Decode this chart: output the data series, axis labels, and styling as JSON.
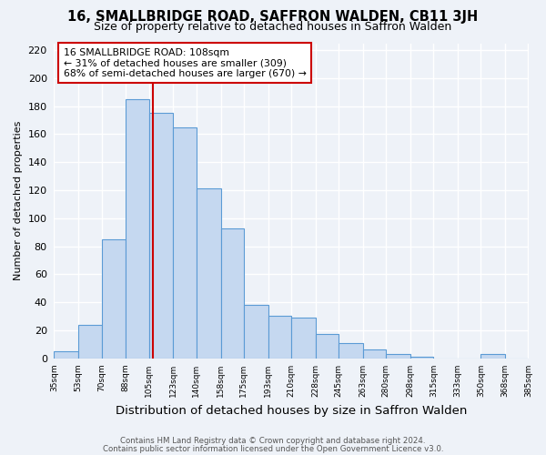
{
  "title": "16, SMALLBRIDGE ROAD, SAFFRON WALDEN, CB11 3JH",
  "subtitle": "Size of property relative to detached houses in Saffron Walden",
  "xlabel": "Distribution of detached houses by size in Saffron Walden",
  "ylabel": "Number of detached properties",
  "bin_labels": [
    "35sqm",
    "53sqm",
    "70sqm",
    "88sqm",
    "105sqm",
    "123sqm",
    "140sqm",
    "158sqm",
    "175sqm",
    "193sqm",
    "210sqm",
    "228sqm",
    "245sqm",
    "263sqm",
    "280sqm",
    "298sqm",
    "315sqm",
    "333sqm",
    "350sqm",
    "368sqm",
    "385sqm"
  ],
  "bin_edges": [
    35,
    53,
    70,
    88,
    105,
    123,
    140,
    158,
    175,
    193,
    210,
    228,
    245,
    263,
    280,
    298,
    315,
    333,
    350,
    368,
    385
  ],
  "bar_heights": [
    5,
    24,
    85,
    185,
    175,
    165,
    121,
    93,
    38,
    30,
    29,
    17,
    11,
    6,
    3,
    1,
    0,
    0,
    3,
    0
  ],
  "bar_color": "#c5d8f0",
  "bar_edge_color": "#5b9bd5",
  "property_line_x": 108,
  "property_line_color": "#cc0000",
  "annotation_line1": "16 SMALLBRIDGE ROAD: 108sqm",
  "annotation_line2": "← 31% of detached houses are smaller (309)",
  "annotation_line3": "68% of semi-detached houses are larger (670) →",
  "ylim": [
    0,
    225
  ],
  "yticks": [
    0,
    20,
    40,
    60,
    80,
    100,
    120,
    140,
    160,
    180,
    200,
    220
  ],
  "footer_line1": "Contains HM Land Registry data © Crown copyright and database right 2024.",
  "footer_line2": "Contains public sector information licensed under the Open Government Licence v3.0.",
  "fig_background_color": "#eef2f8",
  "ax_background_color": "#eef2f8",
  "grid_color": "#ffffff",
  "title_fontsize": 10.5,
  "subtitle_fontsize": 9,
  "ylabel_fontsize": 8,
  "xlabel_fontsize": 9.5
}
